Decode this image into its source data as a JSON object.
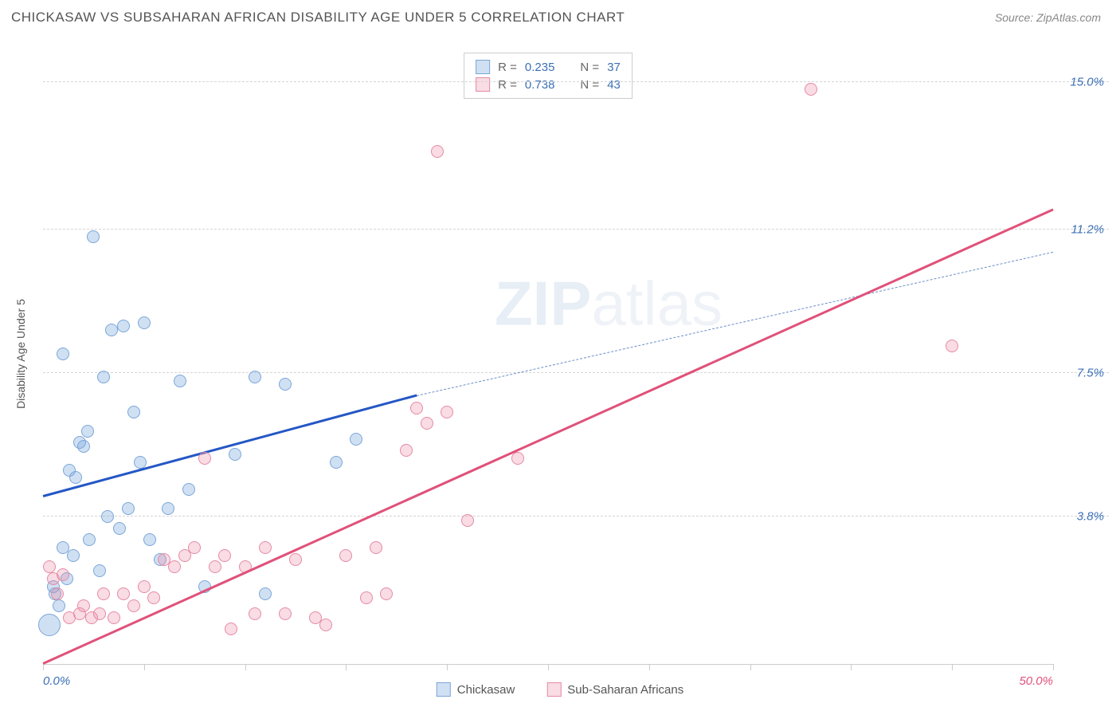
{
  "title": "CHICKASAW VS SUBSAHARAN AFRICAN DISABILITY AGE UNDER 5 CORRELATION CHART",
  "source": "Source: ZipAtlas.com",
  "watermark_main": "ZIP",
  "watermark_sub": "atlas",
  "chart": {
    "type": "scatter",
    "ylabel": "Disability Age Under 5",
    "xlim": [
      0,
      50
    ],
    "ylim": [
      0,
      16
    ],
    "yticks": [
      {
        "value": 3.8,
        "label": "3.8%",
        "color": "#3b6fb5"
      },
      {
        "value": 7.5,
        "label": "7.5%",
        "color": "#3b6fb5"
      },
      {
        "value": 11.2,
        "label": "11.2%",
        "color": "#3b6fb5"
      },
      {
        "value": 15.0,
        "label": "15.0%",
        "color": "#3b6fb5"
      }
    ],
    "xticks": [
      0,
      5,
      10,
      15,
      20,
      25,
      30,
      35,
      40,
      45,
      50
    ],
    "xtick_labels": [
      {
        "value": 0,
        "label": "0.0%",
        "color": "#3b6fb5"
      },
      {
        "value": 50,
        "label": "50.0%",
        "color": "#e0517a"
      }
    ],
    "background_color": "#ffffff",
    "grid_color": "#d5d5d5",
    "series": [
      {
        "name": "Chickasaw",
        "marker_fill": "rgba(120,165,220,0.35)",
        "marker_stroke": "#7aa6d8",
        "marker_radius": 8,
        "line_color": "#2457c5",
        "dash_color": "#6a8fc7",
        "R": "0.235",
        "N": "37",
        "trend": {
          "x1": 0,
          "y1": 4.3,
          "x2": 18.5,
          "y2": 6.9,
          "dash_x2": 50,
          "dash_y2": 10.6
        },
        "points": [
          [
            0.5,
            2.0
          ],
          [
            0.8,
            1.5
          ],
          [
            0.6,
            1.8
          ],
          [
            1.2,
            2.2
          ],
          [
            1.0,
            3.0
          ],
          [
            1.5,
            2.8
          ],
          [
            1.3,
            5.0
          ],
          [
            1.8,
            5.7
          ],
          [
            2.0,
            5.6
          ],
          [
            1.6,
            4.8
          ],
          [
            2.3,
            3.2
          ],
          [
            2.5,
            11.0
          ],
          [
            2.2,
            6.0
          ],
          [
            2.8,
            2.4
          ],
          [
            3.0,
            7.4
          ],
          [
            3.4,
            8.6
          ],
          [
            3.8,
            3.5
          ],
          [
            4.0,
            8.7
          ],
          [
            4.2,
            4.0
          ],
          [
            4.5,
            6.5
          ],
          [
            5.0,
            8.8
          ],
          [
            5.3,
            3.2
          ],
          [
            5.8,
            2.7
          ],
          [
            6.2,
            4.0
          ],
          [
            6.8,
            7.3
          ],
          [
            7.2,
            4.5
          ],
          [
            8.0,
            2.0
          ],
          [
            9.5,
            5.4
          ],
          [
            10.5,
            7.4
          ],
          [
            11.0,
            1.8
          ],
          [
            12.0,
            7.2
          ],
          [
            14.5,
            5.2
          ],
          [
            15.5,
            5.8
          ],
          [
            3.2,
            3.8
          ],
          [
            4.8,
            5.2
          ],
          [
            1.0,
            8.0
          ],
          [
            0.3,
            1.0,
            14
          ]
        ]
      },
      {
        "name": "Sub-Saharan Africans",
        "marker_fill": "rgba(235,140,165,0.30)",
        "marker_stroke": "#e58aa5",
        "marker_radius": 8,
        "line_color": "#e0517a",
        "R": "0.738",
        "N": "43",
        "trend": {
          "x1": 0,
          "y1": 0.0,
          "x2": 50,
          "y2": 11.7
        },
        "points": [
          [
            0.5,
            2.2
          ],
          [
            0.7,
            1.8
          ],
          [
            1.0,
            2.3
          ],
          [
            1.3,
            1.2
          ],
          [
            1.8,
            1.3
          ],
          [
            2.0,
            1.5
          ],
          [
            2.4,
            1.2
          ],
          [
            2.8,
            1.3
          ],
          [
            3.0,
            1.8
          ],
          [
            3.5,
            1.2
          ],
          [
            4.0,
            1.8
          ],
          [
            4.5,
            1.5
          ],
          [
            5.0,
            2.0
          ],
          [
            5.5,
            1.7
          ],
          [
            6.0,
            2.7
          ],
          [
            6.5,
            2.5
          ],
          [
            7.0,
            2.8
          ],
          [
            7.5,
            3.0
          ],
          [
            8.0,
            5.3
          ],
          [
            8.5,
            2.5
          ],
          [
            9.0,
            2.8
          ],
          [
            9.3,
            0.9
          ],
          [
            10.0,
            2.5
          ],
          [
            10.5,
            1.3
          ],
          [
            11.0,
            3.0
          ],
          [
            12.0,
            1.3
          ],
          [
            12.5,
            2.7
          ],
          [
            13.5,
            1.2
          ],
          [
            14.0,
            1.0
          ],
          [
            15.0,
            2.8
          ],
          [
            16.0,
            1.7
          ],
          [
            16.5,
            3.0
          ],
          [
            17.0,
            1.8
          ],
          [
            18.0,
            5.5
          ],
          [
            18.5,
            6.6
          ],
          [
            19.0,
            6.2
          ],
          [
            19.5,
            13.2
          ],
          [
            20.0,
            6.5
          ],
          [
            21.0,
            3.7
          ],
          [
            23.5,
            5.3
          ],
          [
            38.0,
            14.8
          ],
          [
            45.0,
            8.2
          ],
          [
            0.3,
            2.5
          ]
        ]
      }
    ],
    "legend_top": {
      "rows": [
        {
          "swatch_fill": "rgba(120,165,220,0.35)",
          "swatch_stroke": "#7aa6d8",
          "r_label": "R =",
          "r_val": "0.235",
          "n_label": "N =",
          "n_val": "37",
          "val_color": "#3b6fb5"
        },
        {
          "swatch_fill": "rgba(235,140,165,0.30)",
          "swatch_stroke": "#e58aa5",
          "r_label": "R =",
          "r_val": "0.738",
          "n_label": "N =",
          "n_val": "43",
          "val_color": "#3b6fb5"
        }
      ]
    },
    "legend_bottom": [
      {
        "swatch_fill": "rgba(120,165,220,0.35)",
        "swatch_stroke": "#7aa6d8",
        "label": "Chickasaw"
      },
      {
        "swatch_fill": "rgba(235,140,165,0.30)",
        "swatch_stroke": "#e58aa5",
        "label": "Sub-Saharan Africans"
      }
    ]
  }
}
